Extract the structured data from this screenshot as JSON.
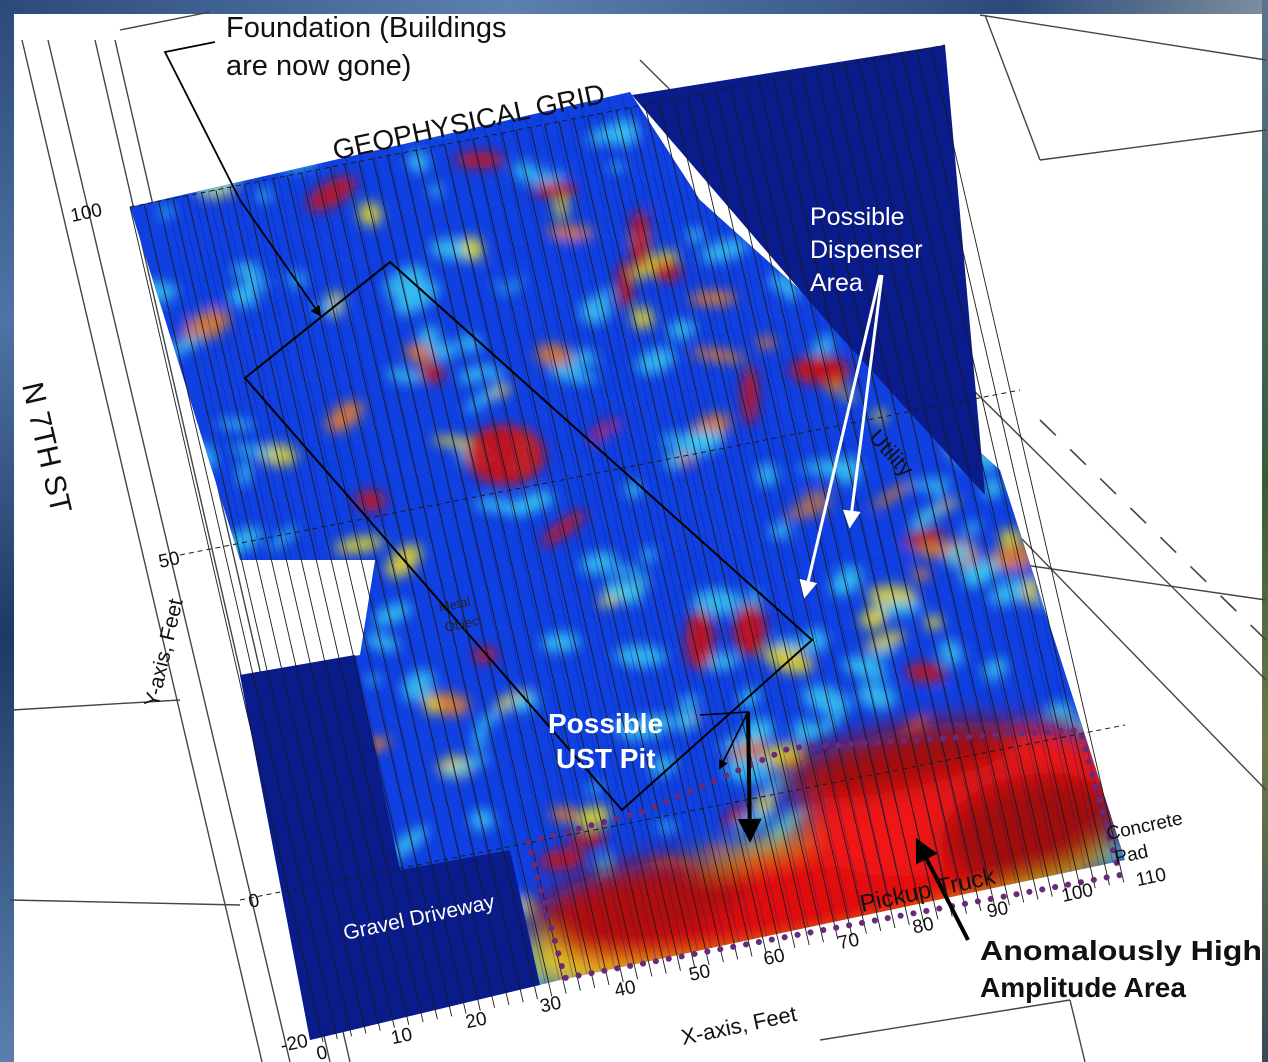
{
  "annotations": {
    "foundation_line1": "Foundation (Buildings",
    "foundation_line2": "are now gone)",
    "grid_title": "GEOPHYSICAL GRID",
    "street": "N 7TH ST",
    "dispenser_line1": "Possible",
    "dispenser_line2": "Dispenser",
    "dispenser_line3": "Area",
    "utility": "Utility",
    "metal_line1": "Metal",
    "metal_line2": "Object",
    "ust_line1": "Possible",
    "ust_line2": "UST Pit",
    "gravel": "Gravel Driveway",
    "pickup": "Pickup Truck",
    "concrete_line1": "Concrete",
    "concrete_line2": "Pad",
    "anomaly_line1": "Anomalously High",
    "anomaly_line2": "Amplitude Area"
  },
  "axes": {
    "x_label": "X-axis, Feet",
    "y_label": "Y-axis, Feet",
    "x_ticks": [
      "0",
      "10",
      "20",
      "30",
      "40",
      "50",
      "60",
      "70",
      "80",
      "90",
      "100",
      "110"
    ],
    "y_ticks": [
      "100",
      "50",
      "0",
      "-20"
    ]
  },
  "colors": {
    "masked_area": "#0a1c8c",
    "low_amplitude": "#1040e0",
    "mid_amplitude": "#38c8f0",
    "high_amplitude": "#f0e020",
    "very_high_amplitude": "#a00808",
    "dotted_outline": "#6a2a7a"
  }
}
